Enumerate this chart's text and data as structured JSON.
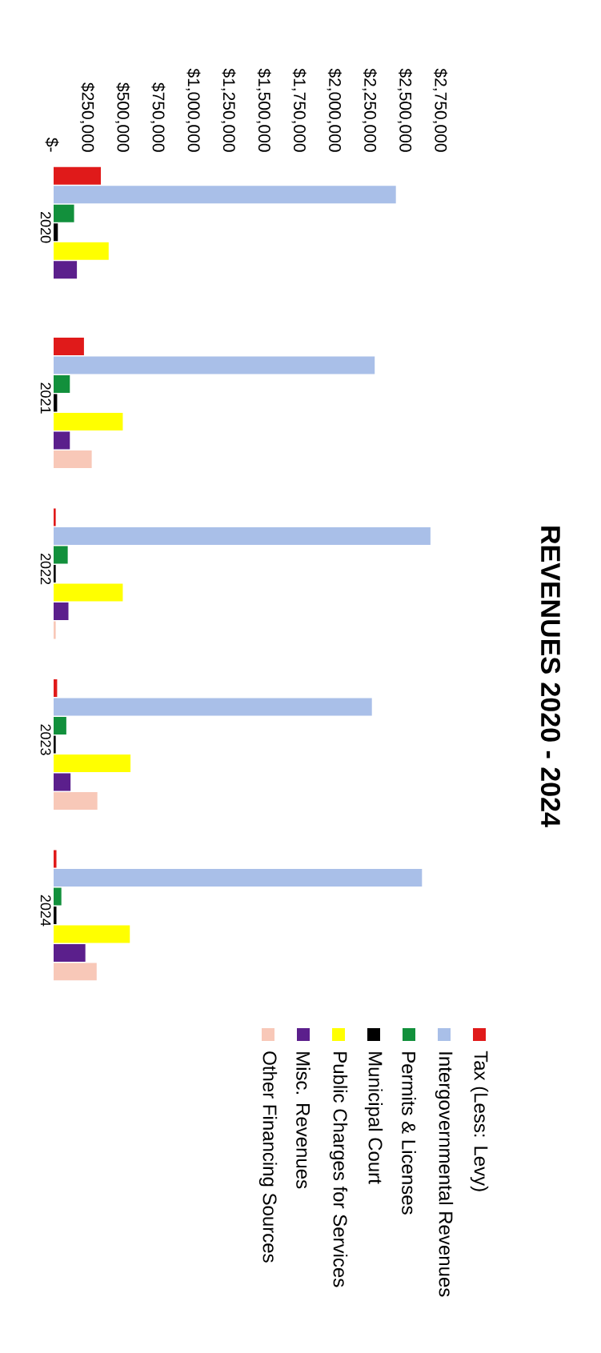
{
  "chart_data": {
    "type": "bar",
    "title": "REVENUES 2020 - 2024",
    "categories": [
      "2020",
      "2021",
      "2022",
      "2023",
      "2024"
    ],
    "orientation": "horizontal",
    "series": [
      {
        "name": "Tax (Less: Levy)",
        "color": "#e01a1a",
        "values": [
          335000,
          215000,
          15000,
          25000,
          20000
        ]
      },
      {
        "name": "Intergovernmental Revenues",
        "color": "#a9bfe8",
        "values": [
          2425000,
          2275000,
          2670000,
          2255000,
          2610000
        ]
      },
      {
        "name": "Permits & Licenses",
        "color": "#12903c",
        "values": [
          145000,
          115000,
          100000,
          90000,
          55000
        ]
      },
      {
        "name": "Municipal Court",
        "color": "#000000",
        "values": [
          30000,
          25000,
          15000,
          15000,
          20000
        ]
      },
      {
        "name": "Public Charges for Services",
        "color": "#ffff00",
        "values": [
          390000,
          490000,
          490000,
          545000,
          540000
        ]
      },
      {
        "name": "Misc. Revenues",
        "color": "#5b1f8c",
        "values": [
          165000,
          115000,
          105000,
          120000,
          225000
        ]
      },
      {
        "name": "Other Financing Sources",
        "color": "#f8c8b8",
        "values": [
          null,
          270000,
          15000,
          310000,
          305000
        ]
      }
    ],
    "xlim": [
      0,
      2750000
    ],
    "xticks": [
      {
        "value": 0,
        "label": "$-"
      },
      {
        "value": 250000,
        "label": "$250,000"
      },
      {
        "value": 500000,
        "label": "$500,000"
      },
      {
        "value": 750000,
        "label": "$750,000"
      },
      {
        "value": 1000000,
        "label": "$1,000,000"
      },
      {
        "value": 1250000,
        "label": "$1,250,000"
      },
      {
        "value": 1500000,
        "label": "$1,500,000"
      },
      {
        "value": 1750000,
        "label": "$1,750,000"
      },
      {
        "value": 2000000,
        "label": "$2,000,000"
      },
      {
        "value": 2250000,
        "label": "$2,250,000"
      },
      {
        "value": 2500000,
        "label": "$2,500,000"
      },
      {
        "value": 2750000,
        "label": "$2,750,000"
      }
    ],
    "grid": false,
    "legend": "right"
  }
}
